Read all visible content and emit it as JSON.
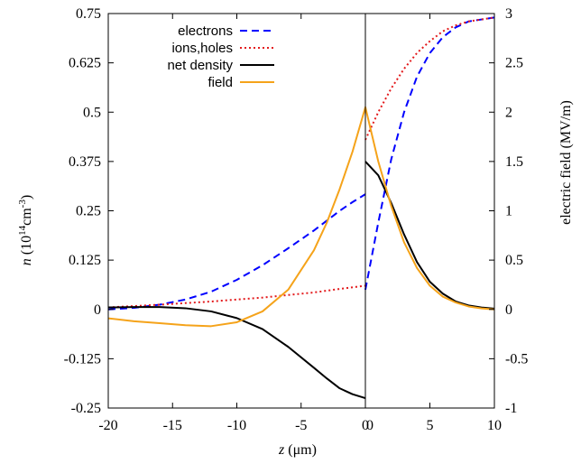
{
  "chart_data": {
    "type": "line",
    "xlabel": {
      "var": "z",
      "unit": " (μm)"
    },
    "ylabel_left": {
      "var": "n",
      "prefix": " (10",
      "sup1": "14",
      "mid": "cm",
      "sup2": "-3",
      "suffix": ")"
    },
    "ylabel_right": "electric field (MV/m)",
    "xlim_left_panel": [
      -20,
      0
    ],
    "xlim_right_panel": [
      0,
      10
    ],
    "ylim_left": [
      -0.25,
      0.75
    ],
    "ylim_right": [
      -1,
      3
    ],
    "x_ticks_left_panel": [
      "-20",
      "-15",
      "-10",
      "-5",
      "0"
    ],
    "x_ticks_right_panel": [
      "0",
      "5",
      "10"
    ],
    "y_ticks_left": [
      "-0.25",
      "-0.125",
      "0",
      "0.125",
      "0.25",
      "0.375",
      "0.5",
      "0.625",
      "0.75"
    ],
    "y_ticks_right": [
      "-1",
      "-0.5",
      "0",
      "0.5",
      "1",
      "1.5",
      "2",
      "2.5",
      "3"
    ],
    "legend_placement": "top-left",
    "series": [
      {
        "name": "electrons",
        "color": "#0000ff",
        "style": "dashed",
        "axis": "left",
        "x": [
          -20,
          -18,
          -16,
          -14,
          -12,
          -10,
          -8,
          -6,
          -4,
          -2,
          -1,
          0,
          0,
          1,
          2,
          3,
          4,
          5,
          6,
          7,
          8,
          9,
          10
        ],
        "y": [
          0.0,
          0.004,
          0.012,
          0.025,
          0.045,
          0.075,
          0.112,
          0.155,
          0.2,
          0.25,
          0.272,
          0.292,
          0.05,
          0.22,
          0.38,
          0.5,
          0.59,
          0.65,
          0.69,
          0.715,
          0.73,
          0.735,
          0.74
        ]
      },
      {
        "name": "ions,holes",
        "color": "#e31a1c",
        "style": "dotted",
        "axis": "left",
        "x": [
          -20,
          -16,
          -12,
          -8,
          -4,
          -2,
          0,
          0,
          1,
          2,
          3,
          4,
          5,
          6,
          7,
          8,
          9,
          10
        ],
        "y": [
          0.005,
          0.012,
          0.02,
          0.03,
          0.043,
          0.052,
          0.06,
          0.43,
          0.5,
          0.56,
          0.61,
          0.65,
          0.68,
          0.705,
          0.72,
          0.73,
          0.735,
          0.74
        ]
      },
      {
        "name": "net density",
        "color": "#000000",
        "style": "solid",
        "axis": "left",
        "x": [
          -20,
          -18,
          -16,
          -14,
          -12,
          -10,
          -8,
          -6,
          -4,
          -3,
          -2,
          -1,
          0,
          0,
          1,
          2,
          3,
          4,
          5,
          6,
          7,
          8,
          9,
          10
        ],
        "y": [
          0.005,
          0.006,
          0.006,
          0.003,
          -0.005,
          -0.022,
          -0.05,
          -0.095,
          -0.148,
          -0.175,
          -0.2,
          -0.215,
          -0.225,
          0.375,
          0.34,
          0.27,
          0.19,
          0.12,
          0.07,
          0.04,
          0.02,
          0.01,
          0.005,
          0.002
        ]
      },
      {
        "name": "field",
        "color": "#f5a31a",
        "style": "solid",
        "axis": "right",
        "x": [
          -20,
          -18,
          -16,
          -14,
          -12,
          -10,
          -8,
          -6,
          -4,
          -3,
          -2,
          -1,
          0,
          1,
          2,
          3,
          4,
          5,
          6,
          7,
          8,
          9,
          10
        ],
        "y": [
          -0.09,
          -0.12,
          -0.14,
          -0.16,
          -0.17,
          -0.13,
          -0.02,
          0.2,
          0.6,
          0.88,
          1.22,
          1.6,
          2.05,
          1.5,
          1.05,
          0.68,
          0.42,
          0.24,
          0.13,
          0.07,
          0.03,
          0.01,
          0.0
        ]
      }
    ]
  }
}
